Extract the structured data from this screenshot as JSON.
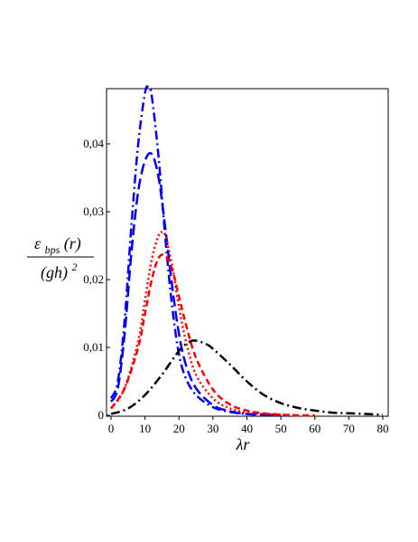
{
  "chart_data": {
    "type": "line",
    "title": "",
    "xlabel": "λr",
    "ylabel": {
      "numerator": "ε",
      "numerator_subscript": "bps",
      "numerator_arg": "(r)",
      "denominator": "(gh)",
      "denominator_exp": "2"
    },
    "xlim": [
      0,
      80
    ],
    "ylim": [
      0,
      0.048
    ],
    "x_ticks": [
      0,
      10,
      20,
      30,
      40,
      50,
      60,
      70,
      80
    ],
    "y_ticks": [
      0,
      0.01,
      0.02,
      0.03,
      0.04
    ],
    "y_tick_labels": [
      "0",
      "0,01",
      "0,02",
      "0,03",
      "0,04"
    ],
    "grid": false,
    "legend": "none",
    "series": [
      {
        "color": "#0000ff",
        "dash": "dashdot",
        "x": [
          0,
          2,
          4,
          6,
          8,
          10,
          11,
          12,
          14,
          16,
          18,
          20,
          22,
          25,
          30,
          35,
          40,
          45,
          50
        ],
        "y": [
          0.0025,
          0.005,
          0.014,
          0.028,
          0.04,
          0.0475,
          0.0483,
          0.047,
          0.038,
          0.026,
          0.016,
          0.009,
          0.0055,
          0.003,
          0.0012,
          0.0005,
          0.0002,
          0.0001,
          0.0
        ]
      },
      {
        "color": "#0000ff",
        "dash": "longdash",
        "x": [
          0,
          2,
          4,
          6,
          8,
          10,
          12,
          14,
          16,
          18,
          20,
          22,
          25,
          30,
          35,
          40,
          45,
          50
        ],
        "y": [
          0.002,
          0.004,
          0.012,
          0.024,
          0.033,
          0.0375,
          0.0385,
          0.035,
          0.0275,
          0.019,
          0.012,
          0.0075,
          0.004,
          0.0015,
          0.0006,
          0.0002,
          0.0001,
          0.0
        ]
      },
      {
        "color": "#ff0000",
        "dash": "dotted",
        "x": [
          0,
          4,
          8,
          10,
          12,
          14,
          15,
          16,
          18,
          20,
          22,
          25,
          30,
          35,
          40,
          45,
          50,
          55
        ],
        "y": [
          0.001,
          0.004,
          0.011,
          0.017,
          0.023,
          0.0265,
          0.027,
          0.0265,
          0.022,
          0.016,
          0.011,
          0.006,
          0.0025,
          0.001,
          0.0004,
          0.0002,
          0.0001,
          0.0
        ]
      },
      {
        "color": "#ff0000",
        "dash": "dashed",
        "x": [
          0,
          4,
          8,
          10,
          12,
          14,
          16,
          18,
          20,
          22,
          25,
          30,
          35,
          40,
          45,
          50,
          55,
          60
        ],
        "y": [
          0.001,
          0.004,
          0.01,
          0.015,
          0.02,
          0.0232,
          0.0235,
          0.0215,
          0.0175,
          0.0135,
          0.0085,
          0.0038,
          0.0016,
          0.0007,
          0.0003,
          0.0001,
          0.0,
          0.0
        ]
      },
      {
        "color": "#000000",
        "dash": "dashdot",
        "x": [
          0,
          5,
          10,
          15,
          20,
          23,
          25,
          28,
          30,
          35,
          40,
          45,
          50,
          55,
          60,
          65,
          70,
          75,
          80
        ],
        "y": [
          0.0002,
          0.001,
          0.003,
          0.006,
          0.0095,
          0.0108,
          0.011,
          0.0105,
          0.0098,
          0.0075,
          0.005,
          0.003,
          0.0018,
          0.0011,
          0.0007,
          0.0004,
          0.0003,
          0.0002,
          0.0001
        ]
      }
    ]
  }
}
